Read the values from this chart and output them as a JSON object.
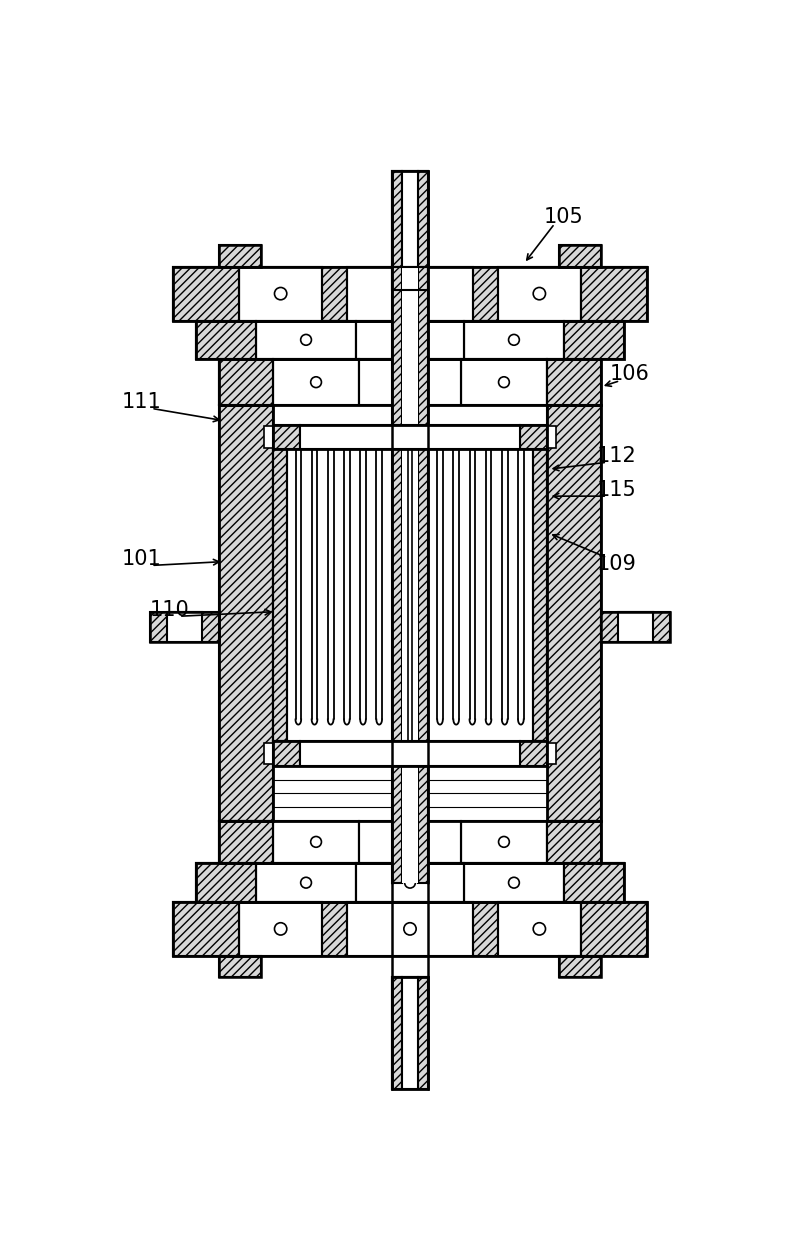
{
  "bg_color": "#ffffff",
  "line_color": "#000000",
  "label_fontsize": 15,
  "figsize": [
    8.0,
    12.47
  ],
  "dpi": 100,
  "annotations": [
    [
      "105",
      600,
      88,
      548,
      148
    ],
    [
      "106",
      685,
      292,
      648,
      308
    ],
    [
      "111",
      52,
      328,
      158,
      352
    ],
    [
      "112",
      668,
      398,
      580,
      415
    ],
    [
      "115",
      668,
      442,
      580,
      450
    ],
    [
      "101",
      52,
      532,
      158,
      535
    ],
    [
      "110",
      88,
      598,
      225,
      600
    ],
    [
      "109",
      668,
      538,
      580,
      498
    ]
  ]
}
